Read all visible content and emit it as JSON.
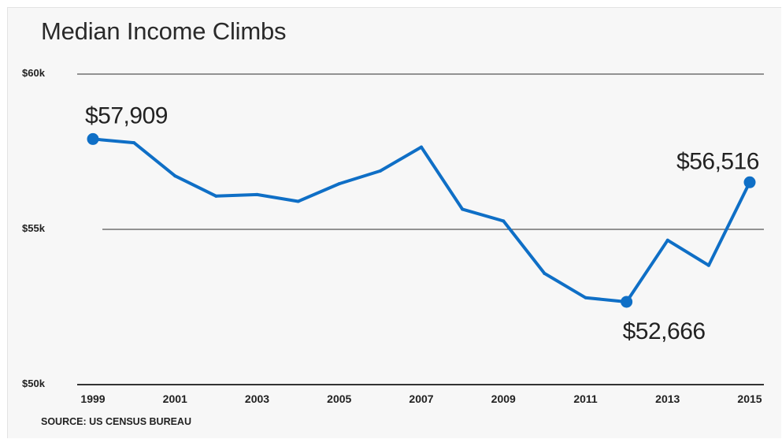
{
  "chart_data": {
    "type": "line",
    "title": "Median Income Climbs",
    "source": "SOURCE: US CENSUS BUREAU",
    "x": [
      1999,
      2000,
      2001,
      2002,
      2003,
      2004,
      2005,
      2006,
      2007,
      2008,
      2009,
      2010,
      2011,
      2012,
      2013,
      2014,
      2015
    ],
    "series": [
      {
        "values": [
          57909,
          57790,
          56720,
          56070,
          56120,
          55900,
          56470,
          56880,
          57650,
          55650,
          55270,
          53580,
          52800,
          52666,
          54650,
          53840,
          56516
        ]
      }
    ],
    "xticks": [
      1999,
      2001,
      2003,
      2005,
      2007,
      2009,
      2011,
      2013,
      2015
    ],
    "xtick_labels": [
      "1999",
      "2001",
      "2003",
      "2005",
      "2007",
      "2009",
      "2011",
      "2013",
      "2015"
    ],
    "yticks": [
      50000,
      55000,
      60000
    ],
    "ytick_labels": [
      "$50k",
      "$55k",
      "$60k"
    ],
    "ylim": [
      50000,
      60000
    ],
    "xlim": [
      1999,
      2015
    ],
    "highlighted_points": [
      {
        "x": 1999,
        "y": 57909,
        "label": "$57,909",
        "position": "above-right"
      },
      {
        "x": 2012,
        "y": 52666,
        "label": "$52,666",
        "position": "below"
      },
      {
        "x": 2015,
        "y": 56516,
        "label": "$56,516",
        "position": "above-left"
      }
    ],
    "line_color": "#0f6fc6",
    "grid": "horizontal"
  }
}
